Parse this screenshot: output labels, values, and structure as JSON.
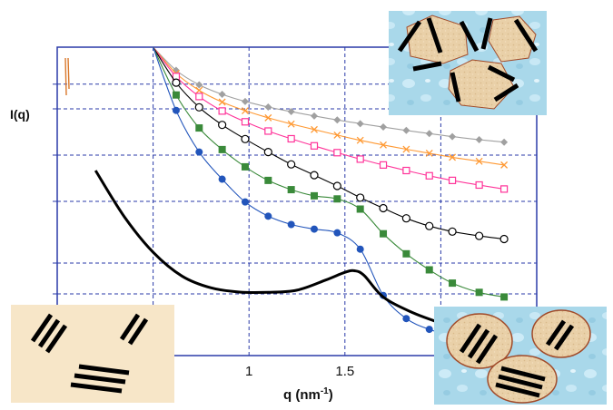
{
  "chart_data": {
    "type": "line",
    "title": "",
    "ylabel": "I(q)",
    "xlabel_main": "q (nm",
    "xlabel_exp": "-1",
    "xlabel_close": ")",
    "xlim": [
      0.0,
      2.5
    ],
    "ylim": [
      0.0,
      10.0
    ],
    "x_ticks": [
      0.5,
      1.0,
      1.5,
      2.0
    ],
    "x_tick_labels": [
      "",
      "1",
      "1.5",
      ""
    ],
    "y_gridlines": [
      2.0,
      3.0,
      5.0,
      6.5,
      8.0,
      8.8
    ],
    "grid": true,
    "legend": "none",
    "series": [
      {
        "color": "#a0a0a0",
        "marker": "diamond",
        "x": [
          0.5,
          0.62,
          0.74,
          0.86,
          0.98,
          1.1,
          1.22,
          1.34,
          1.46,
          1.58,
          1.7,
          1.82,
          1.94,
          2.06,
          2.2,
          2.33
        ],
        "y": [
          10.0,
          9.25,
          8.78,
          8.47,
          8.24,
          8.06,
          7.91,
          7.77,
          7.64,
          7.52,
          7.41,
          7.3,
          7.2,
          7.1,
          7.0,
          6.92
        ]
      },
      {
        "color": "#ff9933",
        "marker": "x",
        "x": [
          0.5,
          0.62,
          0.74,
          0.86,
          0.98,
          1.1,
          1.22,
          1.34,
          1.46,
          1.58,
          1.7,
          1.82,
          1.94,
          2.06,
          2.2,
          2.33
        ],
        "y": [
          10.0,
          9.15,
          8.6,
          8.22,
          7.94,
          7.71,
          7.51,
          7.33,
          7.15,
          6.98,
          6.83,
          6.69,
          6.56,
          6.43,
          6.3,
          6.18
        ]
      },
      {
        "color": "#ff3399",
        "marker": "open-square",
        "x": [
          0.5,
          0.62,
          0.74,
          0.86,
          0.98,
          1.1,
          1.22,
          1.34,
          1.46,
          1.58,
          1.7,
          1.82,
          1.94,
          2.06,
          2.2,
          2.33
        ],
        "y": [
          10.0,
          9.05,
          8.4,
          7.93,
          7.58,
          7.28,
          7.03,
          6.8,
          6.58,
          6.37,
          6.18,
          6.0,
          5.83,
          5.68,
          5.53,
          5.4
        ]
      },
      {
        "color": "#000000",
        "marker": "open-circle",
        "x": [
          0.5,
          0.62,
          0.74,
          0.86,
          0.98,
          1.1,
          1.22,
          1.34,
          1.46,
          1.58,
          1.7,
          1.82,
          1.94,
          2.06,
          2.2,
          2.33
        ],
        "y": [
          10.0,
          8.85,
          8.05,
          7.48,
          7.02,
          6.6,
          6.2,
          5.85,
          5.5,
          5.12,
          4.78,
          4.45,
          4.2,
          4.02,
          3.88,
          3.78
        ]
      },
      {
        "color": "#3a8a3a",
        "marker": "filled-square",
        "x": [
          0.5,
          0.62,
          0.74,
          0.86,
          0.98,
          1.1,
          1.22,
          1.34,
          1.46,
          1.58,
          1.7,
          1.82,
          1.94,
          2.06,
          2.2,
          2.33
        ],
        "y": [
          10.0,
          8.45,
          7.38,
          6.68,
          6.12,
          5.68,
          5.38,
          5.18,
          5.08,
          4.75,
          3.95,
          3.3,
          2.78,
          2.35,
          2.05,
          1.9
        ]
      },
      {
        "color": "#2255bb",
        "marker": "filled-circle",
        "x": [
          0.5,
          0.62,
          0.74,
          0.86,
          0.98,
          1.1,
          1.22,
          1.34,
          1.46,
          1.58,
          1.7,
          1.82,
          1.94,
          2.06,
          2.2,
          2.33
        ],
        "y": [
          10.0,
          7.95,
          6.6,
          5.72,
          4.98,
          4.52,
          4.25,
          4.1,
          3.98,
          3.45,
          1.95,
          1.2,
          0.85,
          0.65,
          0.5,
          0.4
        ]
      },
      {
        "color": "#000000",
        "marker": "none",
        "x": [
          0.2,
          0.35,
          0.5,
          0.65,
          0.8,
          0.95,
          1.1,
          1.25,
          1.4,
          1.5,
          1.55,
          1.6,
          1.7,
          1.85,
          2.0
        ],
        "y": [
          6.0,
          4.5,
          3.35,
          2.58,
          2.2,
          2.06,
          2.05,
          2.12,
          2.45,
          2.7,
          2.75,
          2.6,
          1.9,
          1.4,
          1.05
        ]
      }
    ]
  }
}
